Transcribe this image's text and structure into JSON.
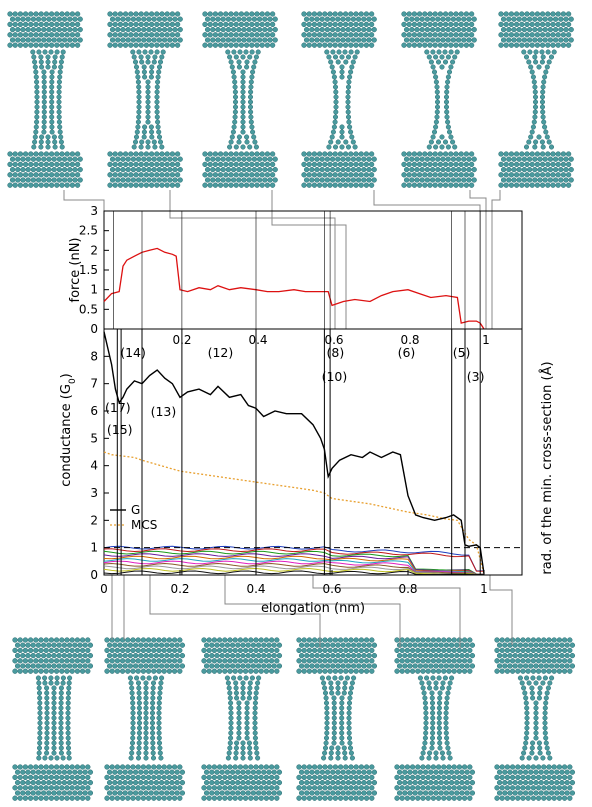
{
  "colors": {
    "force": "#dd1111",
    "conductance": "#000000",
    "mcs": "#e8a030",
    "atom": "#4a9a9e",
    "atom_dark": "#2c6d72",
    "connector": "#888888",
    "eigen": [
      "#1f3fbf",
      "#c01818",
      "#1a9a1a",
      "#6a1a9a",
      "#d06a00",
      "#1fa5c0",
      "#e01fc0",
      "#8b5a2b",
      "#9a9a9a",
      "#c0c020",
      "#101010"
    ]
  },
  "chart_data": [
    {
      "type": "line",
      "panel": "force",
      "ylabel": "force (nN)",
      "ylim": [
        0,
        3
      ],
      "xlim": [
        0,
        1.1
      ],
      "y_ticks": [
        "0",
        "0.5",
        "1",
        "1.5",
        "2",
        "2.5",
        "3"
      ],
      "x_ticks": [
        "0.2",
        "0.4",
        "0.6",
        "0.8",
        "1"
      ],
      "series": [
        {
          "x": [
            0,
            0.02,
            0.04,
            0.05,
            0.06,
            0.08,
            0.1,
            0.12,
            0.14,
            0.16,
            0.18,
            0.19,
            0.2,
            0.22,
            0.25,
            0.28,
            0.3,
            0.33,
            0.36,
            0.4,
            0.43,
            0.46,
            0.5,
            0.53,
            0.56,
            0.59,
            0.6,
            0.63,
            0.66,
            0.7,
            0.73,
            0.76,
            0.8,
            0.83,
            0.86,
            0.9,
            0.93,
            0.94,
            0.96,
            0.98,
            0.99,
            1.0
          ],
          "values": [
            0.7,
            0.9,
            0.95,
            1.6,
            1.75,
            1.85,
            1.95,
            2.0,
            2.05,
            1.95,
            1.9,
            1.85,
            1.0,
            0.95,
            1.05,
            1.0,
            1.1,
            1.0,
            1.05,
            1.0,
            0.95,
            0.95,
            1.0,
            0.95,
            0.95,
            0.95,
            0.6,
            0.7,
            0.75,
            0.7,
            0.85,
            0.95,
            1.0,
            0.9,
            0.8,
            0.85,
            0.8,
            0.15,
            0.2,
            0.2,
            0.15,
            0.0
          ]
        }
      ]
    },
    {
      "type": "line",
      "panel": "conductance",
      "ylabel": "conductance (G",
      "ylabel_sub": "0",
      "ylabel_end": ")",
      "ylabel_right": "rad. of the min. cross-section (Å)",
      "xlabel": "elongation (nm)",
      "ylim": [
        0,
        9
      ],
      "xlim": [
        0,
        1.1
      ],
      "y_ticks": [
        "0",
        "1",
        "2",
        "3",
        "4",
        "5",
        "6",
        "7",
        "8"
      ],
      "x_ticks": [
        "0",
        "0.2",
        "0.4",
        "0.6",
        "0.8",
        "1"
      ],
      "legend": [
        "G",
        "MCS"
      ],
      "annotations": [
        "(17)",
        "(15)",
        "(14)",
        "(13)",
        "(12)",
        "(10)",
        "(8)",
        "(6)",
        "(5)",
        "(3)"
      ],
      "series": [
        {
          "name": "G",
          "x": [
            0,
            0.01,
            0.02,
            0.03,
            0.04,
            0.05,
            0.06,
            0.08,
            0.1,
            0.12,
            0.14,
            0.16,
            0.18,
            0.2,
            0.22,
            0.25,
            0.28,
            0.3,
            0.33,
            0.36,
            0.38,
            0.4,
            0.42,
            0.45,
            0.48,
            0.52,
            0.55,
            0.57,
            0.58,
            0.59,
            0.6,
            0.62,
            0.65,
            0.68,
            0.7,
            0.73,
            0.76,
            0.78,
            0.8,
            0.82,
            0.84,
            0.87,
            0.9,
            0.92,
            0.94,
            0.95,
            0.96,
            0.98,
            0.99,
            1.0
          ],
          "values": [
            8.9,
            8.3,
            7.7,
            6.8,
            6.3,
            6.5,
            6.8,
            7.1,
            7.0,
            7.3,
            7.5,
            7.2,
            7.0,
            6.5,
            6.7,
            6.8,
            6.6,
            6.9,
            6.5,
            6.6,
            6.2,
            6.1,
            5.8,
            6.0,
            5.9,
            5.9,
            5.5,
            5.0,
            4.6,
            3.6,
            3.9,
            4.2,
            4.4,
            4.3,
            4.5,
            4.3,
            4.5,
            4.4,
            2.9,
            2.2,
            2.1,
            2.0,
            2.1,
            2.2,
            2.0,
            1.1,
            1.05,
            1.1,
            1.0,
            0.05
          ]
        },
        {
          "name": "MCS",
          "x": [
            0,
            0.02,
            0.05,
            0.08,
            0.1,
            0.15,
            0.2,
            0.3,
            0.4,
            0.5,
            0.55,
            0.58,
            0.6,
            0.7,
            0.8,
            0.85,
            0.9,
            0.93,
            0.96,
            0.98,
            1.0
          ],
          "values": [
            4.5,
            4.4,
            4.35,
            4.3,
            4.2,
            4.0,
            3.8,
            3.6,
            3.4,
            3.2,
            3.1,
            3.0,
            2.8,
            2.6,
            2.3,
            2.2,
            2.05,
            2.0,
            1.3,
            1.1,
            0.05
          ]
        }
      ],
      "reference_line": 1
    }
  ]
}
